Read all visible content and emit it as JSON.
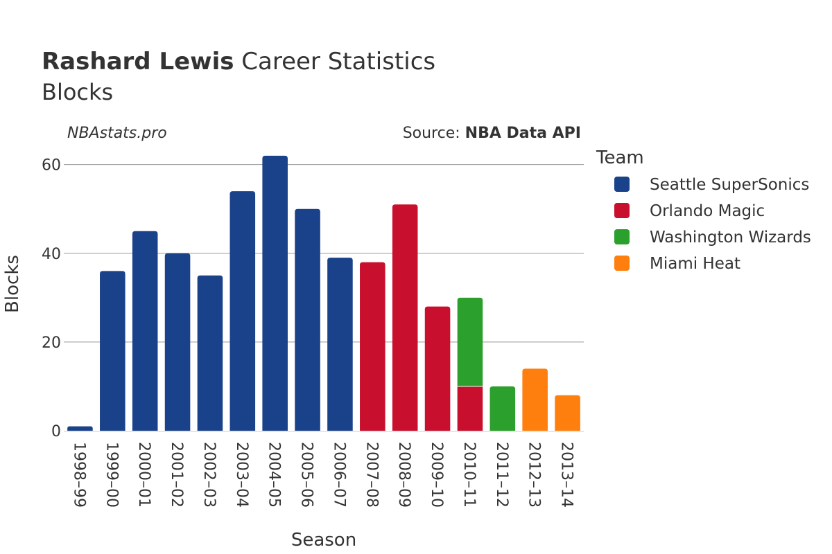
{
  "header": {
    "player_name": "Rashard Lewis",
    "title_rest": " Career Statistics",
    "subtitle": "Blocks",
    "watermark": "NBAstats.pro",
    "source_prefix": "Source: ",
    "source_name": "NBA Data API"
  },
  "legend": {
    "title": "Team"
  },
  "colors": {
    "Seattle SuperSonics": "#1a428a",
    "Orlando Magic": "#c8102e",
    "Washington Wizards": "#2ca02c",
    "Miami Heat": "#ff7f0e",
    "grid": "#999999",
    "text": "#333333"
  },
  "chart_data": {
    "type": "bar",
    "stacked": true,
    "xlabel": "Season",
    "ylabel": "Blocks",
    "ylim": [
      0,
      64
    ],
    "yticks": [
      0,
      20,
      40,
      60
    ],
    "grid": true,
    "legend_position": "right",
    "categories": [
      "1998–99",
      "1999–00",
      "2000–01",
      "2001–02",
      "2002–03",
      "2003–04",
      "2004–05",
      "2005–06",
      "2006–07",
      "2007–08",
      "2008–09",
      "2009–10",
      "2010–11",
      "2011–12",
      "2012–13",
      "2013–14"
    ],
    "series": [
      {
        "name": "Seattle SuperSonics",
        "values": [
          1,
          36,
          45,
          40,
          35,
          54,
          62,
          50,
          39,
          0,
          0,
          0,
          0,
          0,
          0,
          0
        ]
      },
      {
        "name": "Orlando Magic",
        "values": [
          0,
          0,
          0,
          0,
          0,
          0,
          0,
          0,
          0,
          38,
          51,
          28,
          10,
          0,
          0,
          0
        ]
      },
      {
        "name": "Washington Wizards",
        "values": [
          0,
          0,
          0,
          0,
          0,
          0,
          0,
          0,
          0,
          0,
          0,
          0,
          20,
          10,
          0,
          0
        ]
      },
      {
        "name": "Miami Heat",
        "values": [
          0,
          0,
          0,
          0,
          0,
          0,
          0,
          0,
          0,
          0,
          0,
          0,
          0,
          0,
          14,
          8
        ]
      }
    ]
  }
}
